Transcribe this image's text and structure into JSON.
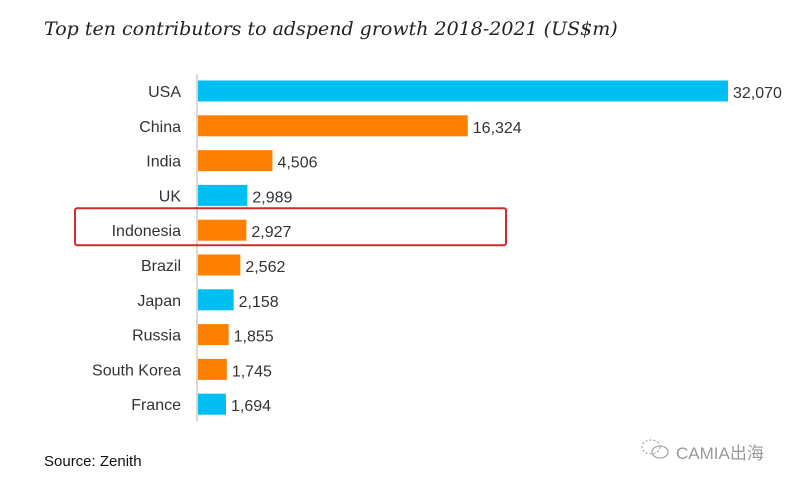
{
  "chart_data": {
    "type": "bar",
    "orientation": "horizontal",
    "title": "Top ten contributors to adspend growth 2018-2021 (US$m)",
    "categories": [
      "USA",
      "China",
      "India",
      "UK",
      "Indonesia",
      "Brazil",
      "Japan",
      "Russia",
      "South Korea",
      "France"
    ],
    "values": [
      32070,
      16324,
      4506,
      2989,
      2927,
      2562,
      2158,
      1855,
      1745,
      1694
    ],
    "value_labels": [
      "32,070",
      "16,324",
      "4,506",
      "2,989",
      "2,927",
      "2,562",
      "2,158",
      "1,855",
      "1,745",
      "1,694"
    ],
    "bar_colors": [
      "#00BFF3",
      "#FF8000",
      "#FF8000",
      "#00BFF3",
      "#FF8000",
      "#FF8000",
      "#00BFF3",
      "#FF8000",
      "#FF8000",
      "#00BFF3"
    ],
    "highlighted_category": "Indonesia",
    "highlight_color": "#D42A2A",
    "xlim": [
      0,
      32070
    ],
    "grid": false
  },
  "source": "Source: Zenith",
  "watermark": "CAMIA出海"
}
